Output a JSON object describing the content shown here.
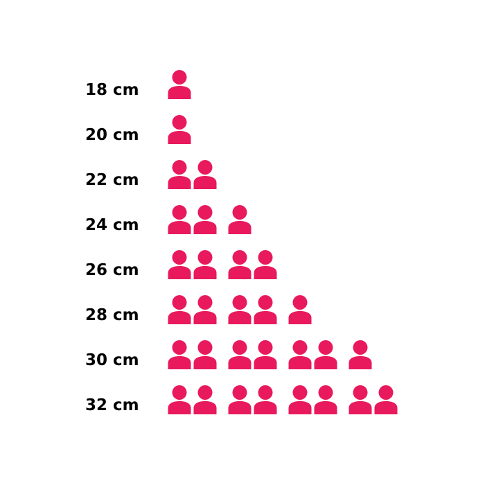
{
  "page": {
    "background_color": "#ffffff",
    "text_color": "#000000"
  },
  "chart_data": {
    "type": "bar",
    "variant": "pictogram",
    "orientation": "horizontal",
    "categories": [
      "18 cm",
      "20 cm",
      "22 cm",
      "24 cm",
      "26 cm",
      "28 cm",
      "30 cm",
      "32 cm"
    ],
    "values": [
      1,
      1,
      2,
      3,
      4,
      5,
      7,
      8
    ],
    "icon": "person-icon",
    "icon_unit": 1,
    "icon_color": "#E8195D",
    "icon_grouping": 2,
    "label_color": "#000000",
    "grid": "off",
    "legend": "none",
    "axes": "none",
    "title": ""
  }
}
